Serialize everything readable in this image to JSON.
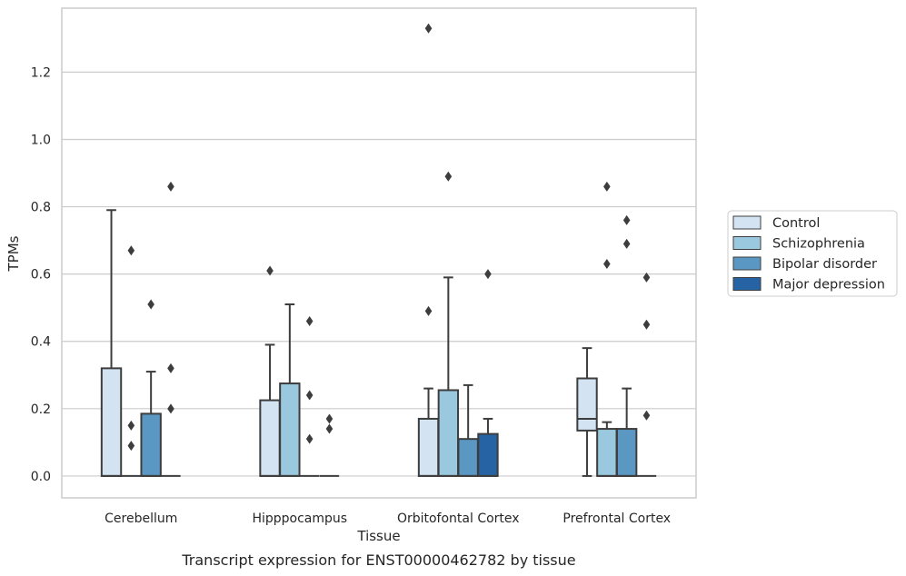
{
  "chart_data": {
    "type": "box",
    "xlabel": "Tissue",
    "ylabel": "TPMs",
    "caption": "Transcript expression for ENST00000462782 by tissue",
    "ylim": [
      -0.065,
      1.39
    ],
    "yticks": [
      0.0,
      0.2,
      0.4,
      0.6,
      0.8,
      1.0,
      1.2
    ],
    "ytick_labels": [
      "0.0",
      "0.2",
      "0.4",
      "0.6",
      "0.8",
      "1.0",
      "1.2"
    ],
    "grid": "horizontal",
    "legend_position": "right",
    "categories": [
      "Cerebellum",
      "Hipppocampus",
      "Orbitofontal Cortex",
      "Prefrontal Cortex"
    ],
    "series": [
      {
        "name": "Control",
        "color": "#d3e3f2",
        "boxes": [
          {
            "q1": 0.0,
            "median": 0.0,
            "q3": 0.32,
            "whislo": 0.0,
            "whishi": 0.79,
            "fliers": []
          },
          {
            "q1": 0.0,
            "median": 0.0,
            "q3": 0.225,
            "whislo": 0.0,
            "whishi": 0.39,
            "fliers": [
              0.61
            ]
          },
          {
            "q1": 0.0,
            "median": 0.0,
            "q3": 0.17,
            "whislo": 0.0,
            "whishi": 0.26,
            "fliers": [
              0.49,
              1.33
            ]
          },
          {
            "q1": 0.135,
            "median": 0.17,
            "q3": 0.29,
            "whislo": 0.0,
            "whishi": 0.38,
            "fliers": []
          }
        ]
      },
      {
        "name": "Schizophrenia",
        "color": "#9ac8df",
        "boxes": [
          {
            "q1": 0.0,
            "median": 0.0,
            "q3": 0.0,
            "whislo": 0.0,
            "whishi": 0.0,
            "fliers": [
              0.09,
              0.15,
              0.67
            ]
          },
          {
            "q1": 0.0,
            "median": 0.0,
            "q3": 0.275,
            "whislo": 0.0,
            "whishi": 0.51,
            "fliers": []
          },
          {
            "q1": 0.0,
            "median": 0.0,
            "q3": 0.255,
            "whislo": 0.0,
            "whishi": 0.59,
            "fliers": [
              0.89
            ]
          },
          {
            "q1": 0.0,
            "median": 0.0,
            "q3": 0.14,
            "whislo": 0.0,
            "whishi": 0.16,
            "fliers": [
              0.63,
              0.86
            ]
          }
        ]
      },
      {
        "name": "Bipolar disorder",
        "color": "#5a97c2",
        "boxes": [
          {
            "q1": 0.0,
            "median": 0.0,
            "q3": 0.185,
            "whislo": 0.0,
            "whishi": 0.31,
            "fliers": [
              0.51
            ]
          },
          {
            "q1": 0.0,
            "median": 0.0,
            "q3": 0.0,
            "whislo": 0.0,
            "whishi": 0.0,
            "fliers": [
              0.11,
              0.24,
              0.46
            ]
          },
          {
            "q1": 0.0,
            "median": 0.0,
            "q3": 0.11,
            "whislo": 0.0,
            "whishi": 0.27,
            "fliers": []
          },
          {
            "q1": 0.0,
            "median": 0.0,
            "q3": 0.14,
            "whislo": 0.0,
            "whishi": 0.26,
            "fliers": [
              0.69,
              0.76
            ]
          }
        ]
      },
      {
        "name": "Major depression",
        "color": "#2563a4",
        "boxes": [
          {
            "q1": 0.0,
            "median": 0.0,
            "q3": 0.0,
            "whislo": 0.0,
            "whishi": 0.0,
            "fliers": [
              0.2,
              0.32,
              0.86
            ]
          },
          {
            "q1": 0.0,
            "median": 0.0,
            "q3": 0.0,
            "whislo": 0.0,
            "whishi": 0.0,
            "fliers": [
              0.14,
              0.17
            ]
          },
          {
            "q1": 0.0,
            "median": 0.0,
            "q3": 0.125,
            "whislo": 0.0,
            "whishi": 0.17,
            "fliers": [
              0.6
            ]
          },
          {
            "q1": 0.0,
            "median": 0.0,
            "q3": 0.0,
            "whislo": 0.0,
            "whishi": 0.0,
            "fliers": [
              0.18,
              0.45,
              0.59
            ]
          }
        ]
      }
    ]
  },
  "colors": {
    "grid": "#cccccc",
    "spine": "#cccccc",
    "box_edge": "#3d3d3d",
    "flier": "#3d3d3d"
  }
}
